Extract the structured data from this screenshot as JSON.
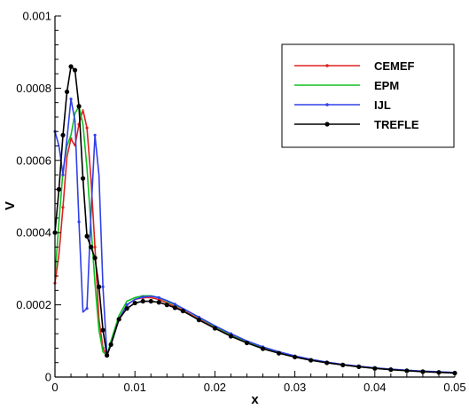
{
  "chart_data": {
    "type": "line",
    "xlabel": "x",
    "ylabel": "V",
    "xlim": [
      0,
      0.05
    ],
    "ylim": [
      0,
      0.001
    ],
    "x_ticks": [
      0,
      0.01,
      0.02,
      0.03,
      0.04,
      0.05
    ],
    "x_tick_labels": [
      "0",
      "0.01",
      "0.02",
      "0.03",
      "0.04",
      "0.05"
    ],
    "y_ticks": [
      0,
      0.0002,
      0.0004,
      0.0006,
      0.0008,
      0.001
    ],
    "y_tick_labels": [
      "0",
      "0.0002",
      "0.0004",
      "0.0006",
      "0.0008",
      "0.001"
    ],
    "grid": false,
    "legend_position": "top-right",
    "series": [
      {
        "name": "CEMEF",
        "color": "#e02020",
        "marker": "small-dot",
        "x": [
          0,
          0.0005,
          0.001,
          0.0015,
          0.002,
          0.0025,
          0.003,
          0.0035,
          0.004,
          0.0045,
          0.005,
          0.0055,
          0.006,
          0.0065,
          0.007,
          0.008,
          0.009,
          0.01,
          0.011,
          0.012,
          0.013,
          0.014,
          0.015,
          0.016,
          0.018,
          0.02,
          0.022,
          0.024,
          0.026,
          0.028,
          0.03,
          0.032,
          0.034,
          0.036,
          0.038,
          0.04,
          0.042,
          0.044,
          0.046,
          0.048,
          0.05
        ],
        "y": [
          0.00026,
          0.00034,
          0.00047,
          0.00061,
          0.00066,
          0.00064,
          0.0007,
          0.00074,
          0.00069,
          0.00055,
          0.00036,
          0.00016,
          8e-05,
          6e-05,
          9e-05,
          0.00016,
          0.0002,
          0.000215,
          0.00022,
          0.00022,
          0.000215,
          0.000205,
          0.000195,
          0.000185,
          0.00016,
          0.000137,
          0.000115,
          9.65e-05,
          8.05e-05,
          6.75e-05,
          5.65e-05,
          4.75e-05,
          4e-05,
          3.4e-05,
          2.9e-05,
          2.45e-05,
          2.1e-05,
          1.8e-05,
          1.55e-05,
          1.35e-05,
          1.15e-05
        ]
      },
      {
        "name": "EPM",
        "color": "#10c020",
        "marker": "none",
        "x": [
          0,
          0.0005,
          0.001,
          0.0015,
          0.002,
          0.0025,
          0.003,
          0.0035,
          0.004,
          0.0045,
          0.005,
          0.0055,
          0.006,
          0.0065,
          0.007,
          0.008,
          0.009,
          0.01,
          0.011,
          0.012,
          0.013,
          0.014,
          0.015,
          0.016,
          0.018,
          0.02,
          0.022,
          0.024,
          0.026,
          0.028,
          0.03,
          0.032,
          0.034,
          0.036,
          0.038,
          0.04,
          0.042,
          0.044,
          0.046,
          0.048,
          0.05
        ],
        "y": [
          0.00028,
          0.00043,
          0.00057,
          0.00064,
          0.00067,
          0.00073,
          0.00075,
          0.0007,
          0.00058,
          0.00042,
          0.00026,
          0.00013,
          7e-05,
          6e-05,
          0.0001,
          0.00017,
          0.00021,
          0.00022,
          0.000225,
          0.000225,
          0.00022,
          0.00021,
          0.0002,
          0.00019,
          0.000165,
          0.00014,
          0.000118,
          9.85e-05,
          8.2e-05,
          6.9e-05,
          5.75e-05,
          4.85e-05,
          4.1e-05,
          3.45e-05,
          2.95e-05,
          2.5e-05,
          2.15e-05,
          1.85e-05,
          1.6e-05,
          1.4e-05,
          1.2e-05
        ]
      },
      {
        "name": "IJL",
        "color": "#3040e8",
        "marker": "small-dot",
        "x": [
          0,
          0.0005,
          0.001,
          0.0015,
          0.002,
          0.0025,
          0.003,
          0.0035,
          0.004,
          0.0045,
          0.005,
          0.0055,
          0.006,
          0.0065,
          0.007,
          0.008,
          0.009,
          0.01,
          0.011,
          0.012,
          0.013,
          0.014,
          0.015,
          0.016,
          0.018,
          0.02,
          0.022,
          0.024,
          0.026,
          0.028,
          0.03,
          0.032,
          0.034,
          0.036,
          0.038,
          0.04,
          0.042,
          0.044,
          0.046,
          0.048,
          0.05
        ],
        "y": [
          0.00068,
          0.00064,
          0.00056,
          0.00066,
          0.00077,
          0.00071,
          0.00043,
          0.00018,
          0.00019,
          0.00045,
          0.00067,
          0.00056,
          0.00025,
          6e-05,
          9e-05,
          0.00016,
          0.0002,
          0.000215,
          0.000222,
          0.000224,
          0.00022,
          0.000212,
          0.000202,
          0.00019,
          0.000166,
          0.000142,
          0.00012,
          0.0001,
          8.35e-05,
          7e-05,
          5.85e-05,
          4.9e-05,
          4.15e-05,
          3.5e-05,
          3e-05,
          2.55e-05,
          2.2e-05,
          1.9e-05,
          1.65e-05,
          1.45e-05,
          1.25e-05
        ]
      },
      {
        "name": "TREFLE",
        "color": "#000000",
        "marker": "dot",
        "x": [
          0,
          0.0005,
          0.001,
          0.0015,
          0.002,
          0.0025,
          0.003,
          0.0035,
          0.004,
          0.0045,
          0.005,
          0.0055,
          0.006,
          0.0065,
          0.007,
          0.008,
          0.009,
          0.01,
          0.011,
          0.012,
          0.013,
          0.014,
          0.015,
          0.016,
          0.018,
          0.02,
          0.022,
          0.024,
          0.026,
          0.028,
          0.03,
          0.032,
          0.034,
          0.036,
          0.038,
          0.04,
          0.042,
          0.044,
          0.046,
          0.048,
          0.05
        ],
        "y": [
          0.0004,
          0.00052,
          0.00067,
          0.00079,
          0.00086,
          0.00085,
          0.00075,
          0.00055,
          0.00039,
          0.00036,
          0.00033,
          0.00025,
          0.00013,
          6e-05,
          9e-05,
          0.00016,
          0.00019,
          0.000205,
          0.00021,
          0.00021,
          0.000207,
          0.0002,
          0.000192,
          0.000183,
          0.000158,
          0.000135,
          0.000113,
          9.45e-05,
          7.85e-05,
          6.6e-05,
          5.55e-05,
          4.65e-05,
          3.95e-05,
          3.35e-05,
          2.85e-05,
          2.4e-05,
          2.05e-05,
          1.75e-05,
          1.5e-05,
          1.3e-05,
          1.1e-05
        ]
      }
    ]
  }
}
